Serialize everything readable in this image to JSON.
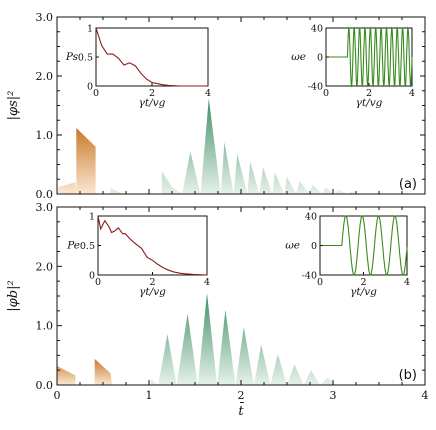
{
  "chart_data": [
    {
      "type": "area",
      "panel_label": "(a)",
      "ylabel": "|φs|²",
      "xlabel": "t̄",
      "xlim": [
        0,
        4
      ],
      "ylim": [
        0,
        3.0
      ],
      "yticks": [
        "0.0",
        "1.0",
        "2.0",
        "3.0"
      ],
      "xticks": [],
      "peaks": {
        "orange": [
          [
            0.0,
            0.0
          ],
          [
            0.02,
            0.12
          ],
          [
            0.2,
            0.2
          ],
          [
            0.21,
            0.0
          ],
          [
            0.21,
            0.28
          ],
          [
            0.21,
            1.12
          ],
          [
            0.42,
            0.8
          ],
          [
            0.42,
            0.0
          ],
          [
            0.58,
            0.0
          ],
          [
            0.58,
            0.1
          ],
          [
            0.72,
            0.0
          ]
        ],
        "green": [
          [
            1.14,
            0.38
          ],
          [
            1.25,
            0.12
          ],
          [
            1.36,
            0.0
          ],
          [
            1.45,
            0.72
          ],
          [
            1.56,
            0.0
          ],
          [
            1.65,
            1.62
          ],
          [
            1.78,
            0.0
          ],
          [
            1.82,
            0.88
          ],
          [
            1.92,
            0.0
          ],
          [
            1.96,
            0.68
          ],
          [
            2.07,
            0.0
          ],
          [
            2.1,
            0.55
          ],
          [
            2.2,
            0.0
          ],
          [
            2.24,
            0.45
          ],
          [
            2.34,
            0.0
          ],
          [
            2.37,
            0.36
          ],
          [
            2.47,
            0.0
          ],
          [
            2.5,
            0.29
          ],
          [
            2.6,
            0.0
          ],
          [
            2.64,
            0.22
          ],
          [
            2.74,
            0.0
          ],
          [
            2.78,
            0.16
          ],
          [
            2.88,
            0.0
          ],
          [
            2.92,
            0.11
          ],
          [
            3.02,
            0.0
          ],
          [
            3.06,
            0.07
          ],
          [
            3.16,
            0.0
          ],
          [
            3.2,
            0.04
          ],
          [
            3.3,
            0.0
          ]
        ]
      },
      "insets": [
        {
          "type": "line",
          "ylabel": "Ps",
          "xlabel": "γt/vg",
          "xlim": [
            0,
            4
          ],
          "ylim": [
            0,
            1
          ],
          "xticks": [
            "0",
            "2",
            "4"
          ],
          "yticks": [
            "0",
            "0.5",
            "1"
          ],
          "color": "#8b1a1a",
          "x": [
            0,
            0.2,
            0.4,
            0.6,
            0.8,
            1.0,
            1.2,
            1.4,
            1.6,
            1.8,
            2.0,
            2.2,
            2.4,
            2.6,
            3.0,
            4.0
          ],
          "y": [
            1.0,
            0.7,
            0.55,
            0.55,
            0.48,
            0.36,
            0.4,
            0.35,
            0.22,
            0.12,
            0.06,
            0.04,
            0.02,
            0.01,
            0.0,
            0.0
          ]
        },
        {
          "type": "line",
          "ylabel": "ωe",
          "xlabel": "γt/vg",
          "xlim": [
            0,
            4
          ],
          "ylim": [
            -40,
            40
          ],
          "xticks": [
            "0",
            "2",
            "4"
          ],
          "yticks": [
            "40",
            "0",
            "-40"
          ],
          "color": "#3a8a20",
          "flat_until": 1.0,
          "amplitude": 40,
          "cycles_per_unit": 4.0
        }
      ]
    },
    {
      "type": "area",
      "panel_label": "(b)",
      "ylabel": "|φb|²",
      "xlabel": "t̄",
      "xlim": [
        0,
        4
      ],
      "ylim": [
        0,
        3.0
      ],
      "yticks": [
        "0.0",
        "1.0",
        "2.0",
        "3.0"
      ],
      "xticks": [
        "0",
        "1",
        "2",
        "3",
        "4"
      ],
      "peaks": {
        "orange": [
          [
            0.0,
            0.0
          ],
          [
            0.0,
            0.32
          ],
          [
            0.2,
            0.16
          ],
          [
            0.2,
            0.0
          ],
          [
            0.41,
            0.0
          ],
          [
            0.41,
            0.44
          ],
          [
            0.58,
            0.2
          ],
          [
            0.6,
            0.0
          ]
        ],
        "green": [
          [
            1.02,
            0.1
          ],
          [
            1.1,
            0.0
          ],
          [
            1.2,
            0.86
          ],
          [
            1.3,
            0.0
          ],
          [
            1.42,
            1.2
          ],
          [
            1.53,
            0.0
          ],
          [
            1.63,
            1.55
          ],
          [
            1.74,
            0.0
          ],
          [
            1.83,
            1.27
          ],
          [
            1.94,
            0.0
          ],
          [
            2.03,
            0.98
          ],
          [
            2.14,
            0.0
          ],
          [
            2.22,
            0.68
          ],
          [
            2.32,
            0.0
          ],
          [
            2.4,
            0.52
          ],
          [
            2.5,
            0.0
          ],
          [
            2.58,
            0.35
          ],
          [
            2.68,
            0.0
          ],
          [
            2.76,
            0.25
          ],
          [
            2.86,
            0.0
          ],
          [
            2.94,
            0.12
          ],
          [
            3.04,
            0.0
          ]
        ]
      },
      "insets": [
        {
          "type": "line",
          "ylabel": "Pe",
          "xlabel": "γt/vg",
          "xlim": [
            0,
            4
          ],
          "ylim": [
            0,
            1
          ],
          "xticks": [
            "0",
            "2",
            "4"
          ],
          "yticks": [
            "0",
            "0.5",
            "1"
          ],
          "color": "#8b1a1a",
          "x": [
            0,
            0.1,
            0.25,
            0.4,
            0.5,
            0.6,
            0.75,
            0.9,
            1.0,
            1.2,
            1.4,
            1.6,
            1.8,
            2.0,
            2.2,
            2.4,
            2.6,
            2.8,
            3.0,
            3.2,
            3.5,
            4.0
          ],
          "y": [
            1.0,
            0.78,
            0.92,
            0.82,
            0.72,
            0.74,
            0.8,
            0.7,
            0.7,
            0.6,
            0.52,
            0.45,
            0.3,
            0.25,
            0.18,
            0.12,
            0.08,
            0.05,
            0.03,
            0.02,
            0.01,
            0.0
          ]
        },
        {
          "type": "line",
          "ylabel": "ωe",
          "xlabel": "γt/vg",
          "xlim": [
            0,
            4
          ],
          "ylim": [
            -40,
            40
          ],
          "xticks": [
            "0",
            "2",
            "4"
          ],
          "yticks": [
            "40",
            "0",
            "-40"
          ],
          "color": "#3a8a20",
          "flat_until": 1.0,
          "amplitude": 40,
          "cycles_per_unit": 1.33
        }
      ]
    }
  ],
  "colors": {
    "orange_top": "#c87a2c",
    "orange_bottom": "#fbe8d2",
    "green_top": "#3f8e66",
    "green_bottom": "#e6f1ea"
  }
}
